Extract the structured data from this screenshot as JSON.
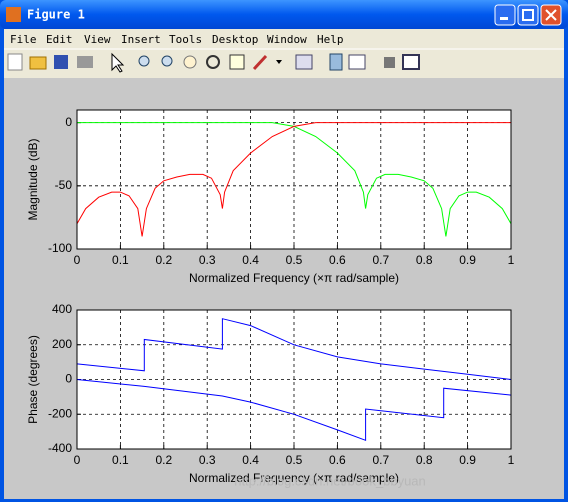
{
  "window": {
    "title": "Figure 1",
    "menu": [
      "File",
      "Edit",
      "View",
      "Insert",
      "Tools",
      "Desktop",
      "Window",
      "Help"
    ],
    "watermark": "http://blog.csdn.net/book_bbyuan"
  },
  "chart_data": [
    {
      "type": "line",
      "ylabel": "Magnitude (dB)",
      "xlabel": "Normalized Frequency  (×π rad/sample)",
      "xlim": [
        0,
        1
      ],
      "ylim": [
        -100,
        10
      ],
      "xticks": [
        0,
        0.1,
        0.2,
        0.3,
        0.4,
        0.5,
        0.6,
        0.7,
        0.8,
        0.9,
        1
      ],
      "yticks": [
        -100,
        -50,
        0
      ],
      "grid": true,
      "x": [
        0,
        0.02,
        0.05,
        0.08,
        0.1,
        0.12,
        0.14,
        0.15,
        0.16,
        0.18,
        0.2,
        0.23,
        0.26,
        0.29,
        0.31,
        0.33,
        0.335,
        0.34,
        0.36,
        0.4,
        0.45,
        0.5,
        0.55,
        0.6,
        0.64,
        0.66,
        0.665,
        0.67,
        0.69,
        0.71,
        0.74,
        0.77,
        0.8,
        0.82,
        0.84,
        0.85,
        0.86,
        0.88,
        0.9,
        0.92,
        0.95,
        0.98,
        1
      ],
      "series": [
        {
          "color": "#00ff00",
          "values": [
            0,
            0,
            0,
            0,
            0,
            0,
            0,
            0,
            0,
            0,
            0,
            0,
            0,
            0,
            0,
            0,
            0,
            0,
            0,
            0,
            0,
            -3,
            -11,
            -24,
            -38,
            -55,
            -68,
            -57,
            -44,
            -41,
            -41,
            -43,
            -46,
            -52,
            -68,
            -90,
            -68,
            -58,
            -55,
            -55,
            -59,
            -68,
            -80
          ]
        },
        {
          "color": "#ff0000",
          "values": [
            -80,
            -68,
            -59,
            -55,
            -55,
            -58,
            -68,
            -90,
            -68,
            -52,
            -46,
            -43,
            -41,
            -41,
            -44,
            -57,
            -68,
            -55,
            -38,
            -24,
            -11,
            -3,
            0,
            0,
            0,
            0,
            0,
            0,
            0,
            0,
            0,
            0,
            0,
            0,
            0,
            0,
            0,
            0,
            0,
            0,
            0,
            0,
            0
          ]
        }
      ]
    },
    {
      "type": "line",
      "ylabel": "Phase (degrees)",
      "xlabel": "Normalized Frequency  (×π rad/sample)",
      "xlim": [
        0,
        1
      ],
      "ylim": [
        -400,
        400
      ],
      "xticks": [
        0,
        0.1,
        0.2,
        0.3,
        0.4,
        0.5,
        0.6,
        0.7,
        0.8,
        0.9,
        1
      ],
      "yticks": [
        -400,
        -200,
        0,
        200,
        400
      ],
      "grid": true,
      "series": [
        {
          "color": "#0000ff",
          "x": [
            0,
            0.155,
            0.155,
            0.335,
            0.335,
            0.4,
            0.5,
            0.6,
            0.7,
            0.8,
            0.9,
            1
          ],
          "values": [
            90,
            50,
            230,
            175,
            350,
            310,
            200,
            130,
            90,
            60,
            30,
            0
          ]
        },
        {
          "color": "#0000ff",
          "x": [
            0,
            0.155,
            0.335,
            0.4,
            0.5,
            0.6,
            0.665,
            0.665,
            0.845,
            0.845,
            1
          ],
          "values": [
            0,
            -40,
            -95,
            -130,
            -200,
            -290,
            -350,
            -170,
            -220,
            -50,
            -90
          ]
        }
      ]
    }
  ]
}
